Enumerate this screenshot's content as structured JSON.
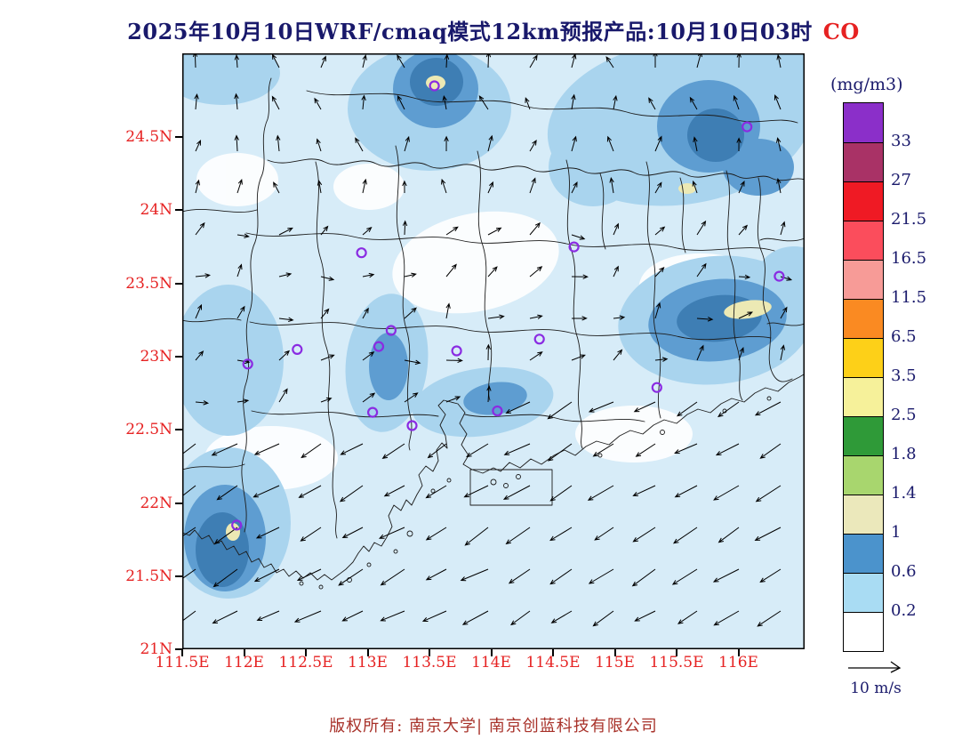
{
  "title": {
    "text": "2025年10月10日WRF/cmaq模式12km预报产品:10月10日03时",
    "species": "CO"
  },
  "axes": {
    "lat_labels": [
      "24.5N",
      "24N",
      "23.5N",
      "23N",
      "22.5N",
      "22N",
      "21.5N",
      "21N"
    ],
    "lon_labels": [
      "111.5E",
      "112E",
      "112.5E",
      "113E",
      "113.5E",
      "114E",
      "114.5E",
      "115E",
      "115.5E",
      "116E"
    ]
  },
  "colorbar": {
    "unit": "(mg/m3)",
    "tick_labels": [
      "33",
      "27",
      "21.5",
      "16.5",
      "11.5",
      "6.5",
      "3.5",
      "2.5",
      "1.8",
      "1.4",
      "1",
      "0.6",
      "0.2"
    ],
    "colors_top_to_bottom": [
      "#8b2fc9",
      "#a93266",
      "#ef1a24",
      "#fb4d5c",
      "#f79b97",
      "#fa8a22",
      "#fdd018",
      "#f6f19a",
      "#2f9a38",
      "#a8d66e",
      "#ebe8bb",
      "#4b93cc",
      "#a9dcf3",
      "#ffffff"
    ]
  },
  "wind_legend": {
    "label": "10 m/s"
  },
  "footer": {
    "text": "版权所有: 南京大学| 南京创蓝科技有限公司"
  },
  "chart_data": {
    "type": "heatmap",
    "title": "2025年10月10日WRF/cmaq模式12km预报产品:10月10日03时 CO",
    "variable": "CO",
    "unit": "mg/m3",
    "model": "WRF/cmaq 12km",
    "valid_time_label": "10月10日03时",
    "lon_range": [
      111.5,
      116.54
    ],
    "lat_range": [
      21.0,
      25.07
    ],
    "contour_levels": [
      0.2,
      0.6,
      1,
      1.4,
      1.8,
      2.5,
      3.5,
      6.5,
      11.5,
      16.5,
      21.5,
      27,
      33
    ],
    "level_colors_low_to_high": [
      "#ffffff",
      "#a9dcf3",
      "#4b93cc",
      "#ebe8bb",
      "#a8d66e",
      "#2f9a38",
      "#f6f19a",
      "#fdd018",
      "#fa8a22",
      "#f79b97",
      "#fb4d5c",
      "#ef1a24",
      "#a93266",
      "#8b2fc9"
    ],
    "field_summary": {
      "background": "0.2-0.6 mg/m3 (light blue) over most of the domain, patches below 0.2 (white) inland",
      "maxima": [
        {
          "lon": 113.55,
          "lat": 24.9,
          "level": "1-1.4"
        },
        {
          "lon": 115.6,
          "lat": 23.25,
          "level": "1-1.4"
        },
        {
          "lon": 111.95,
          "lat": 21.8,
          "level": "1-1.4"
        },
        {
          "lon": 115.55,
          "lat": 24.2,
          "level": "0.6-1"
        },
        {
          "lon": 113.55,
          "lat": 22.75,
          "level": "0.6-1"
        }
      ]
    },
    "stations_lonlat": [
      [
        113.54,
        24.85
      ],
      [
        116.07,
        24.57
      ],
      [
        116.33,
        23.55
      ],
      [
        114.67,
        23.75
      ],
      [
        112.95,
        23.71
      ],
      [
        113.19,
        23.18
      ],
      [
        113.09,
        23.07
      ],
      [
        112.43,
        23.05
      ],
      [
        112.03,
        22.95
      ],
      [
        114.39,
        23.12
      ],
      [
        113.72,
        23.04
      ],
      [
        115.34,
        22.79
      ],
      [
        114.05,
        22.63
      ],
      [
        113.04,
        22.62
      ],
      [
        113.36,
        22.53
      ],
      [
        111.94,
        21.85
      ]
    ],
    "wind": {
      "reference_ms": 10,
      "over_sea": "northeasterly flow, arrows point southwest",
      "inland": "light and variable, mostly weak northerly"
    }
  }
}
